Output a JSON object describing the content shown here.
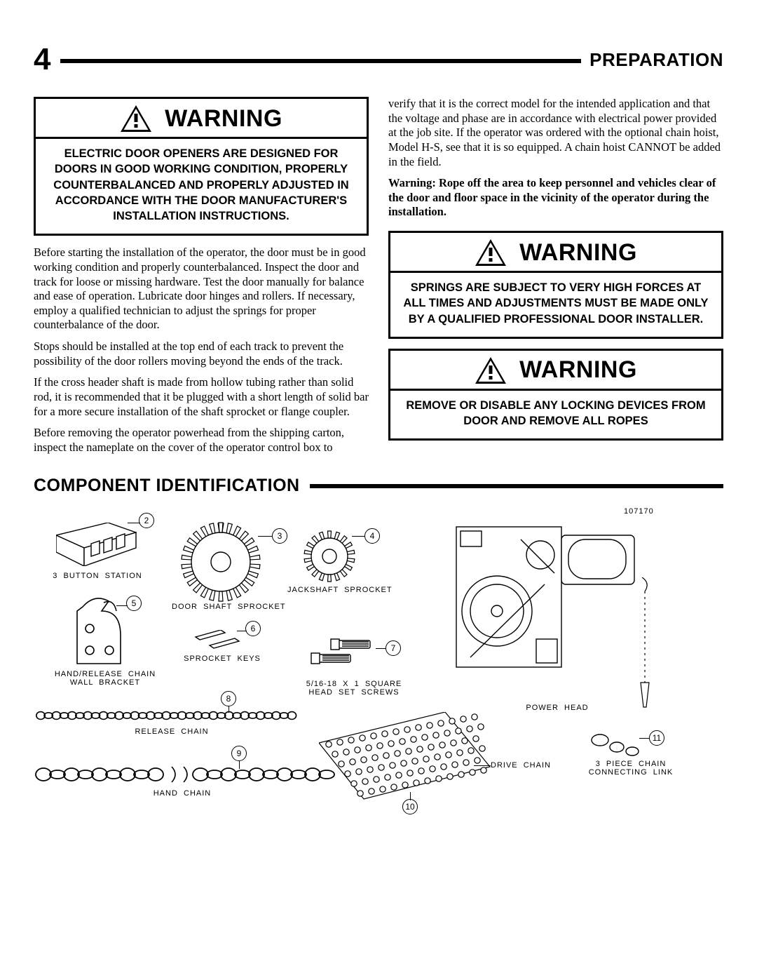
{
  "page_number": "4",
  "section_title": "PREPARATION",
  "warnings": {
    "label": "WARNING",
    "w1": "ELECTRIC DOOR OPENERS ARE DESIGNED FOR DOORS IN GOOD WORKING CONDITION, PROPERLY COUNTERBALANCED AND PROPERLY ADJUSTED IN ACCORDANCE WITH THE DOOR MANUFACTURER'S INSTALLATION INSTRUCTIONS.",
    "w2": "SPRINGS ARE SUBJECT TO VERY HIGH FORCES AT ALL TIMES AND ADJUSTMENTS MUST BE MADE ONLY BY A QUALIFIED PROFESSIONAL DOOR INSTALLER.",
    "w3": "REMOVE OR DISABLE ANY LOCKING DEVICES FROM DOOR AND REMOVE ALL ROPES"
  },
  "paras": {
    "p1": "Before starting the installation of the operator, the door must be in good working condition and properly counterbalanced.  Inspect the door and track for loose or missing hardware.  Test the door manually for balance and ease of operation.  Lubricate door hinges and rollers.  If necessary, employ a qualified technician to adjust the springs for proper counterbalance of the door.",
    "p2": "Stops should be installed at the top end of each track to prevent the possibility of the door rollers moving beyond the ends of the track.",
    "p3": "If the cross header shaft is made from hollow tubing rather than solid rod, it is recommended that it be plugged with a short length of solid bar for a more secure installation of the shaft sprocket or flange coupler.",
    "p4": "Before removing the operator powerhead from the shipping carton, inspect the nameplate on the cover of the operator control box to",
    "p5": "verify that it is the correct model for the intended application and that the voltage and phase are in accordance with electrical power provided at the job site.  If the operator was ordered with the optional chain hoist, Model H-S, see that it is so equipped.  A chain hoist CANNOT be added in the field.",
    "bold": "Warning:  Rope off the area to keep personnel and vehicles clear of the door and floor space in the vicinity of the operator during the installation."
  },
  "component_section": "COMPONENT IDENTIFICATION",
  "diagram": {
    "part_no": "107170",
    "components": {
      "c2": {
        "num": "2",
        "label": "3  BUTTON  STATION"
      },
      "c3": {
        "num": "3",
        "label": "DOOR  SHAFT  SPROCKET"
      },
      "c4": {
        "num": "4",
        "label": "JACKSHAFT  SPROCKET"
      },
      "c5": {
        "num": "5",
        "label": "HAND/RELEASE  CHAIN\nWALL  BRACKET"
      },
      "c6": {
        "num": "6",
        "label": "SPROCKET  KEYS"
      },
      "c7": {
        "num": "7",
        "label": "5/16-18  X  1  SQUARE\nHEAD  SET  SCREWS"
      },
      "c8": {
        "num": "8",
        "label": "RELEASE  CHAIN"
      },
      "c9": {
        "num": "9",
        "label": "HAND  CHAIN"
      },
      "c10": {
        "num": "10",
        "label": "DRIVE  CHAIN"
      },
      "c11": {
        "num": "11",
        "label": "3  PIECE  CHAIN\nCONNECTING  LINK"
      },
      "powerhead": {
        "label": "POWER  HEAD"
      }
    }
  }
}
